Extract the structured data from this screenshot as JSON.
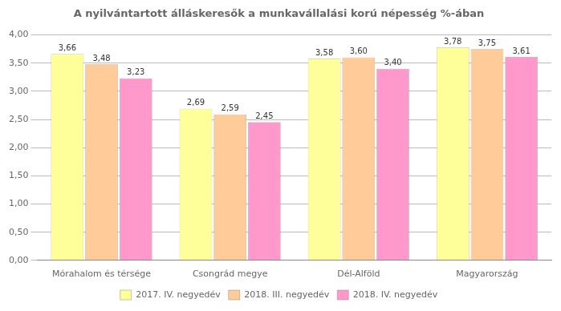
{
  "chart_data": {
    "type": "bar",
    "title": "A nyilvántartott álláskeresők a munkavállalási korú népesség %-ában",
    "categories": [
      "Mórahalom és térsége",
      "Csongrád megye",
      "Dél-Alföld",
      "Magyarország"
    ],
    "series": [
      {
        "name": "2017. IV. negyedév",
        "color": "#FFFF99",
        "values": [
          3.66,
          2.69,
          3.58,
          3.78
        ],
        "value_labels": [
          "3,66",
          "2,69",
          "3,58",
          "3,78"
        ]
      },
      {
        "name": "2018. III. negyedév",
        "color": "#FFCC99",
        "values": [
          3.48,
          2.59,
          3.6,
          3.75
        ],
        "value_labels": [
          "3,48",
          "2,59",
          "3,60",
          "3,75"
        ]
      },
      {
        "name": "2018. IV. negyedév",
        "color": "#FF99CC",
        "values": [
          3.23,
          2.45,
          3.4,
          3.61
        ],
        "value_labels": [
          "3,23",
          "2,45",
          "3,40",
          "3,61"
        ]
      }
    ],
    "ylim": [
      0,
      4.0
    ],
    "yticks": [
      {
        "value": 0.0,
        "label": "0,00"
      },
      {
        "value": 0.5,
        "label": "0,50"
      },
      {
        "value": 1.0,
        "label": "1,00"
      },
      {
        "value": 1.5,
        "label": "1,50"
      },
      {
        "value": 2.0,
        "label": "2,00"
      },
      {
        "value": 2.5,
        "label": "2,50"
      },
      {
        "value": 3.0,
        "label": "3,00"
      },
      {
        "value": 3.5,
        "label": "3,50"
      },
      {
        "value": 4.0,
        "label": "4,00"
      }
    ],
    "grid": true,
    "legend": "bottom",
    "data_labels": true
  }
}
